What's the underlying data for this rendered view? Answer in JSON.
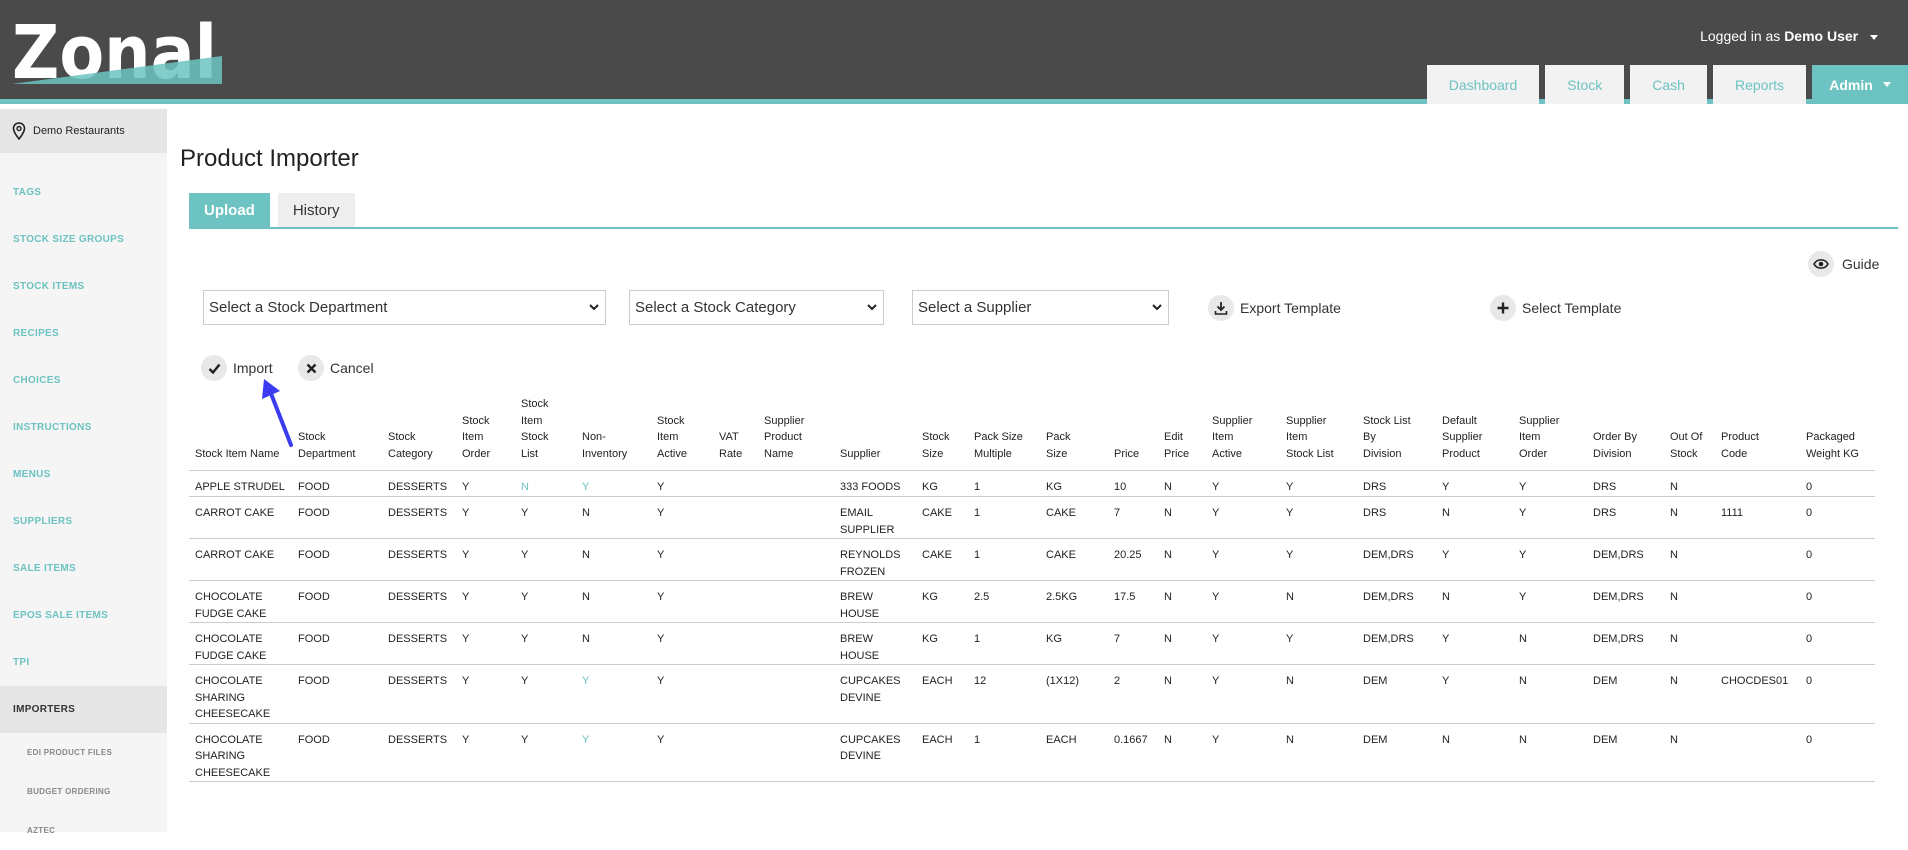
{
  "header": {
    "logo_text": "Zonal",
    "logged_prefix": "Logged in as",
    "user": "Demo User",
    "nav": [
      "Dashboard",
      "Stock",
      "Cash",
      "Reports"
    ],
    "nav_active": "Admin",
    "colors": {
      "bar": "#4a4a4a",
      "accent": "#6cc3c1"
    }
  },
  "sidebar": {
    "site": "Demo Restaurants",
    "items": [
      "TAGS",
      "STOCK SIZE GROUPS",
      "STOCK ITEMS",
      "RECIPES",
      "CHOICES",
      "INSTRUCTIONS",
      "MENUS",
      "SUPPLIERS",
      "SALE ITEMS",
      "EPOS SALE ITEMS",
      "TPI"
    ],
    "active": "IMPORTERS",
    "subitems": [
      "EDI PRODUCT FILES",
      "BUDGET ORDERING",
      "AZTEC"
    ]
  },
  "main": {
    "title": "Product Importer",
    "tabs": {
      "upload": "Upload",
      "history": "History"
    },
    "guide": "Guide",
    "selects": {
      "department": "Select a Stock Department",
      "category": "Select a Stock Category",
      "supplier": "Select a Supplier"
    },
    "export_template": "Export Template",
    "select_template": "Select Template",
    "import": "Import",
    "cancel": "Cancel"
  },
  "table": {
    "headers": [
      [
        "Stock Item Name"
      ],
      [
        "Stock",
        "Department"
      ],
      [
        "Stock",
        "Category"
      ],
      [
        "Stock",
        "Item",
        "Order"
      ],
      [
        "Stock",
        "Item",
        "Stock",
        "List"
      ],
      [
        "Non-",
        "Inventory"
      ],
      [
        "Stock",
        "Item",
        "Active"
      ],
      [
        "VAT",
        "Rate"
      ],
      [
        "Supplier",
        "Product",
        "Name"
      ],
      [
        "Supplier"
      ],
      [
        "Stock",
        "Size"
      ],
      [
        "Pack Size",
        "Multiple"
      ],
      [
        "Pack",
        "Size"
      ],
      [
        "Price"
      ],
      [
        "Edit",
        "Price"
      ],
      [
        "Supplier",
        "Item",
        "Active"
      ],
      [
        "Supplier",
        "Item",
        "Stock List"
      ],
      [
        "Stock List",
        "By",
        "Division"
      ],
      [
        "Default",
        "Supplier",
        "Product"
      ],
      [
        "Supplier",
        "Item",
        "Order"
      ],
      [
        "Order By",
        "Division"
      ],
      [
        "Out Of",
        "Stock"
      ],
      [
        "Product",
        "Code"
      ],
      [
        "Packaged",
        "Weight KG"
      ]
    ],
    "rows": [
      [
        [
          "APPLE STRUDEL"
        ],
        [
          "FOOD"
        ],
        [
          "DESSERTS"
        ],
        [
          "Y"
        ],
        [
          "N"
        ],
        [
          "Y"
        ],
        [
          "Y"
        ],
        [
          ""
        ],
        [
          ""
        ],
        [
          "333 FOODS"
        ],
        [
          "KG"
        ],
        [
          "1"
        ],
        [
          "KG"
        ],
        [
          "10"
        ],
        [
          "N"
        ],
        [
          "Y"
        ],
        [
          "Y"
        ],
        [
          "DRS"
        ],
        [
          "Y"
        ],
        [
          "Y"
        ],
        [
          "DRS"
        ],
        [
          "N"
        ],
        [
          ""
        ],
        [
          "0"
        ]
      ],
      [
        [
          "CARROT CAKE"
        ],
        [
          "FOOD"
        ],
        [
          "DESSERTS"
        ],
        [
          "Y"
        ],
        [
          "Y"
        ],
        [
          "N"
        ],
        [
          "Y"
        ],
        [
          ""
        ],
        [
          ""
        ],
        [
          "EMAIL",
          "SUPPLIER"
        ],
        [
          "CAKE"
        ],
        [
          "1"
        ],
        [
          "CAKE"
        ],
        [
          "7"
        ],
        [
          "N"
        ],
        [
          "Y"
        ],
        [
          "Y"
        ],
        [
          "DRS"
        ],
        [
          "N"
        ],
        [
          "Y"
        ],
        [
          "DRS"
        ],
        [
          "N"
        ],
        [
          "1111"
        ],
        [
          "0"
        ]
      ],
      [
        [
          "CARROT CAKE"
        ],
        [
          "FOOD"
        ],
        [
          "DESSERTS"
        ],
        [
          "Y"
        ],
        [
          "Y"
        ],
        [
          "N"
        ],
        [
          "Y"
        ],
        [
          ""
        ],
        [
          ""
        ],
        [
          "REYNOLDS",
          "FROZEN"
        ],
        [
          "CAKE"
        ],
        [
          "1"
        ],
        [
          "CAKE"
        ],
        [
          "20.25"
        ],
        [
          "N"
        ],
        [
          "Y"
        ],
        [
          "Y"
        ],
        [
          "DEM,DRS"
        ],
        [
          "Y"
        ],
        [
          "Y"
        ],
        [
          "DEM,DRS"
        ],
        [
          "N"
        ],
        [
          ""
        ],
        [
          "0"
        ]
      ],
      [
        [
          "CHOCOLATE",
          "FUDGE CAKE"
        ],
        [
          "FOOD"
        ],
        [
          "DESSERTS"
        ],
        [
          "Y"
        ],
        [
          "Y"
        ],
        [
          "N"
        ],
        [
          "Y"
        ],
        [
          ""
        ],
        [
          ""
        ],
        [
          "BREW",
          "HOUSE"
        ],
        [
          "KG"
        ],
        [
          "2.5"
        ],
        [
          "2.5KG"
        ],
        [
          "17.5"
        ],
        [
          "N"
        ],
        [
          "Y"
        ],
        [
          "N"
        ],
        [
          "DEM,DRS"
        ],
        [
          "N"
        ],
        [
          "Y"
        ],
        [
          "DEM,DRS"
        ],
        [
          "N"
        ],
        [
          ""
        ],
        [
          "0"
        ]
      ],
      [
        [
          "CHOCOLATE",
          "FUDGE CAKE"
        ],
        [
          "FOOD"
        ],
        [
          "DESSERTS"
        ],
        [
          "Y"
        ],
        [
          "Y"
        ],
        [
          "N"
        ],
        [
          "Y"
        ],
        [
          ""
        ],
        [
          ""
        ],
        [
          "BREW",
          "HOUSE"
        ],
        [
          "KG"
        ],
        [
          "1"
        ],
        [
          "KG"
        ],
        [
          "7"
        ],
        [
          "N"
        ],
        [
          "Y"
        ],
        [
          "Y"
        ],
        [
          "DEM,DRS"
        ],
        [
          "Y"
        ],
        [
          "N"
        ],
        [
          "DEM,DRS"
        ],
        [
          "N"
        ],
        [
          ""
        ],
        [
          "0"
        ]
      ],
      [
        [
          "CHOCOLATE",
          "SHARING",
          "CHEESECAKE"
        ],
        [
          "FOOD"
        ],
        [
          "DESSERTS"
        ],
        [
          "Y"
        ],
        [
          "Y"
        ],
        [
          "Y"
        ],
        [
          "Y"
        ],
        [
          ""
        ],
        [
          ""
        ],
        [
          "CUPCAKES",
          "DEVINE"
        ],
        [
          "EACH"
        ],
        [
          "12"
        ],
        [
          "(1X12)"
        ],
        [
          "2"
        ],
        [
          "N"
        ],
        [
          "Y"
        ],
        [
          "N"
        ],
        [
          "DEM"
        ],
        [
          "Y"
        ],
        [
          "N"
        ],
        [
          "DEM"
        ],
        [
          "N"
        ],
        [
          "CHOCDES01"
        ],
        [
          "0"
        ]
      ],
      [
        [
          "CHOCOLATE",
          "SHARING",
          "CHEESECAKE"
        ],
        [
          "FOOD"
        ],
        [
          "DESSERTS"
        ],
        [
          "Y"
        ],
        [
          "Y"
        ],
        [
          "Y"
        ],
        [
          "Y"
        ],
        [
          ""
        ],
        [
          ""
        ],
        [
          "CUPCAKES",
          "DEVINE"
        ],
        [
          "EACH"
        ],
        [
          "1"
        ],
        [
          "EACH"
        ],
        [
          "0.1667"
        ],
        [
          "N"
        ],
        [
          "Y"
        ],
        [
          "N"
        ],
        [
          "DEM"
        ],
        [
          "N"
        ],
        [
          "N"
        ],
        [
          "DEM"
        ],
        [
          "N"
        ],
        [
          ""
        ],
        [
          "0"
        ]
      ]
    ],
    "teal_cells": [
      [
        0,
        4
      ],
      [
        0,
        5
      ],
      [
        5,
        5
      ],
      [
        6,
        5
      ]
    ]
  }
}
